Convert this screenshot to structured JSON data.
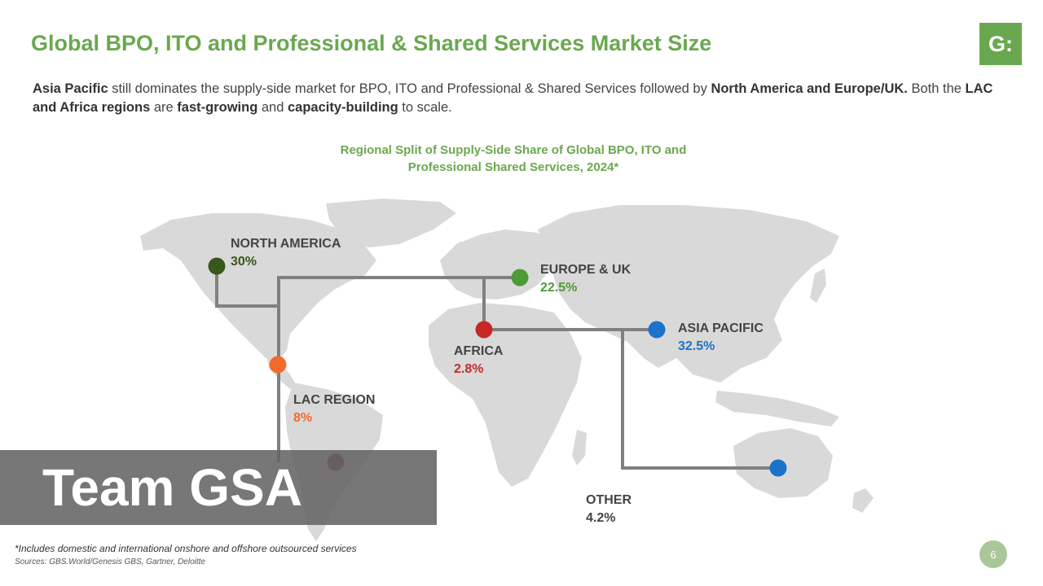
{
  "header": {
    "title": "Global BPO, ITO and Professional & Shared Services Market Size",
    "logo_text": "G:"
  },
  "intro": {
    "p1": "Asia Pacific",
    "p2": " still dominates the supply-side market for BPO, ITO and Professional & Shared Services followed by ",
    "p3": "North America and Europe/UK.",
    "p4": " Both the ",
    "p5": "LAC and Africa regions",
    "p6": " are ",
    "p7": "fast-growing",
    "p8": " and ",
    "p9": "capacity-building",
    "p10": " to scale."
  },
  "map": {
    "title_line1": "Regional Split of Supply-Side Share of Global BPO, ITO and",
    "title_line2": "Professional Shared Services, 2024*",
    "land_color": "#d9d9d9",
    "connector_color": "#808080",
    "regions": [
      {
        "id": "north-america",
        "name": "NORTH AMERICA",
        "value": "30%",
        "color": "#38571a"
      },
      {
        "id": "europe-uk",
        "name": "EUROPE & UK",
        "value": "22.5%",
        "color": "#4e9a37"
      },
      {
        "id": "asia-pacific",
        "name": "ASIA PACIFIC",
        "value": "32.5%",
        "color": "#1a73c8"
      },
      {
        "id": "africa",
        "name": "AFRICA",
        "value": "2.8%",
        "color": "#c62828"
      },
      {
        "id": "lac-region",
        "name": "LAC REGION",
        "value": "8%",
        "color": "#f26b2b"
      },
      {
        "id": "other",
        "name": "OTHER",
        "value": "4.2%",
        "color": "#1a73c8"
      }
    ]
  },
  "watermark": {
    "text": "Team GSA"
  },
  "footer": {
    "footnote": "*Includes domestic and international onshore and offshore outsourced services",
    "sources": "Sources: GBS.World/Genesis GBS, Gartner, Deloitte",
    "page_number": "6"
  }
}
